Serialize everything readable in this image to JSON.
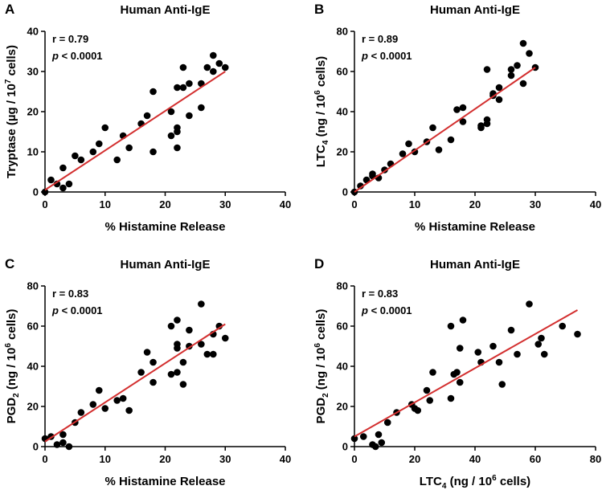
{
  "chart_data": [
    {
      "type": "scatter",
      "panel": "A",
      "title": "Human Anti-IgE",
      "xlabel": "% Histamine Release",
      "ylabel": {
        "main": "Tryptase (µg / 10",
        "sup": "7",
        "tail": " cells)"
      },
      "xlim": [
        0,
        40
      ],
      "ylim": [
        0,
        40
      ],
      "xticks": [
        0,
        10,
        20,
        30,
        40
      ],
      "yticks": [
        0,
        10,
        20,
        30,
        40
      ],
      "r": "r = 0.79",
      "p": {
        "italic": "p",
        "rest": " < 0.0001"
      },
      "fit": [
        [
          0,
          0.5
        ],
        [
          30,
          30
        ]
      ],
      "points": [
        [
          0,
          0
        ],
        [
          1,
          3
        ],
        [
          2,
          2
        ],
        [
          3,
          1
        ],
        [
          3,
          6
        ],
        [
          4,
          2
        ],
        [
          5,
          9
        ],
        [
          6,
          8
        ],
        [
          8,
          10
        ],
        [
          9,
          12
        ],
        [
          10,
          16
        ],
        [
          12,
          8
        ],
        [
          13,
          14
        ],
        [
          14,
          11
        ],
        [
          16,
          17
        ],
        [
          17,
          19
        ],
        [
          18,
          25
        ],
        [
          18,
          10
        ],
        [
          21,
          20
        ],
        [
          21,
          14
        ],
        [
          22,
          11
        ],
        [
          22,
          15
        ],
        [
          22,
          16
        ],
        [
          22,
          26
        ],
        [
          23,
          26
        ],
        [
          23,
          31
        ],
        [
          24,
          19
        ],
        [
          24,
          27
        ],
        [
          26,
          21
        ],
        [
          26,
          27
        ],
        [
          27,
          31
        ],
        [
          28,
          30
        ],
        [
          28,
          34
        ],
        [
          29,
          32
        ],
        [
          30,
          31
        ]
      ]
    },
    {
      "type": "scatter",
      "panel": "B",
      "title": "Human Anti-IgE",
      "xlabel": "% Histamine Release",
      "ylabel": {
        "main": "LTC",
        "sub": "4",
        "mid": " (ng / 10",
        "sup": "6",
        "tail": " cells)"
      },
      "xlim": [
        0,
        40
      ],
      "ylim": [
        0,
        80
      ],
      "xticks": [
        0,
        10,
        20,
        30,
        40
      ],
      "yticks": [
        0,
        20,
        40,
        60,
        80
      ],
      "r": "r = 0.89",
      "p": {
        "italic": "p",
        "rest": " < 0.0001"
      },
      "fit": [
        [
          0,
          0
        ],
        [
          30,
          62
        ]
      ],
      "points": [
        [
          0,
          0
        ],
        [
          1,
          3
        ],
        [
          2,
          6
        ],
        [
          3,
          8
        ],
        [
          3,
          9
        ],
        [
          4,
          7
        ],
        [
          5,
          11
        ],
        [
          6,
          14
        ],
        [
          8,
          19
        ],
        [
          9,
          24
        ],
        [
          10,
          20
        ],
        [
          12,
          25
        ],
        [
          13,
          32
        ],
        [
          14,
          21
        ],
        [
          16,
          26
        ],
        [
          17,
          41
        ],
        [
          18,
          35
        ],
        [
          18,
          42
        ],
        [
          21,
          32
        ],
        [
          21,
          33
        ],
        [
          22,
          34
        ],
        [
          22,
          36
        ],
        [
          22,
          61
        ],
        [
          23,
          48
        ],
        [
          23,
          49
        ],
        [
          24,
          46
        ],
        [
          24,
          52
        ],
        [
          26,
          58
        ],
        [
          26,
          61
        ],
        [
          27,
          63
        ],
        [
          28,
          54
        ],
        [
          28,
          74
        ],
        [
          29,
          69
        ],
        [
          30,
          62
        ]
      ]
    },
    {
      "type": "scatter",
      "panel": "C",
      "title": "Human Anti-IgE",
      "xlabel": "% Histamine Release",
      "ylabel": {
        "main": "PGD",
        "sub": "2",
        "mid": " (ng / 10",
        "sup": "6",
        "tail": " cells)"
      },
      "xlim": [
        0,
        40
      ],
      "ylim": [
        0,
        80
      ],
      "xticks": [
        0,
        10,
        20,
        30,
        40
      ],
      "yticks": [
        0,
        20,
        40,
        60,
        80
      ],
      "r": "r = 0.83",
      "p": {
        "italic": "p",
        "rest": " < 0.0001"
      },
      "fit": [
        [
          0,
          2.5
        ],
        [
          30,
          61
        ]
      ],
      "points": [
        [
          0,
          4
        ],
        [
          1,
          5
        ],
        [
          2,
          1
        ],
        [
          3,
          2
        ],
        [
          3,
          6
        ],
        [
          4,
          0
        ],
        [
          5,
          12
        ],
        [
          6,
          17
        ],
        [
          8,
          21
        ],
        [
          9,
          28
        ],
        [
          10,
          19
        ],
        [
          12,
          23
        ],
        [
          13,
          24
        ],
        [
          14,
          18
        ],
        [
          16,
          37
        ],
        [
          17,
          47
        ],
        [
          18,
          32
        ],
        [
          18,
          42
        ],
        [
          21,
          36
        ],
        [
          21,
          60
        ],
        [
          22,
          37
        ],
        [
          22,
          49
        ],
        [
          22,
          51
        ],
        [
          22,
          63
        ],
        [
          23,
          31
        ],
        [
          23,
          42
        ],
        [
          24,
          50
        ],
        [
          24,
          58
        ],
        [
          26,
          51
        ],
        [
          26,
          71
        ],
        [
          27,
          46
        ],
        [
          28,
          46
        ],
        [
          28,
          56
        ],
        [
          29,
          60
        ],
        [
          30,
          54
        ]
      ]
    },
    {
      "type": "scatter",
      "panel": "D",
      "title": "Human Anti-IgE",
      "xlabel": {
        "main": "LTC",
        "sub": "4",
        "mid": " (ng / 10",
        "sup": "6",
        "tail": " cells)"
      },
      "ylabel": {
        "main": "PGD",
        "sub": "2",
        "mid": " (ng / 10",
        "sup": "6",
        "tail": " cells)"
      },
      "xlim": [
        0,
        80
      ],
      "ylim": [
        0,
        80
      ],
      "xticks": [
        0,
        20,
        40,
        60,
        80
      ],
      "yticks": [
        0,
        20,
        40,
        60,
        80
      ],
      "r": "r = 0.83",
      "p": {
        "italic": "p",
        "rest": " < 0.0001"
      },
      "fit": [
        [
          0,
          5
        ],
        [
          74,
          68
        ]
      ],
      "points": [
        [
          0,
          4
        ],
        [
          3,
          5
        ],
        [
          6,
          1
        ],
        [
          7,
          0
        ],
        [
          8,
          6
        ],
        [
          9,
          2
        ],
        [
          11,
          12
        ],
        [
          14,
          17
        ],
        [
          19,
          21
        ],
        [
          20,
          19
        ],
        [
          21,
          18
        ],
        [
          24,
          28
        ],
        [
          25,
          23
        ],
        [
          26,
          37
        ],
        [
          32,
          24
        ],
        [
          32,
          60
        ],
        [
          33,
          36
        ],
        [
          34,
          37
        ],
        [
          35,
          49
        ],
        [
          35,
          32
        ],
        [
          36,
          63
        ],
        [
          41,
          47
        ],
        [
          42,
          42
        ],
        [
          46,
          50
        ],
        [
          48,
          42
        ],
        [
          49,
          31
        ],
        [
          52,
          58
        ],
        [
          54,
          46
        ],
        [
          58,
          71
        ],
        [
          61,
          51
        ],
        [
          62,
          54
        ],
        [
          63,
          46
        ],
        [
          69,
          60
        ],
        [
          74,
          56
        ]
      ]
    }
  ]
}
